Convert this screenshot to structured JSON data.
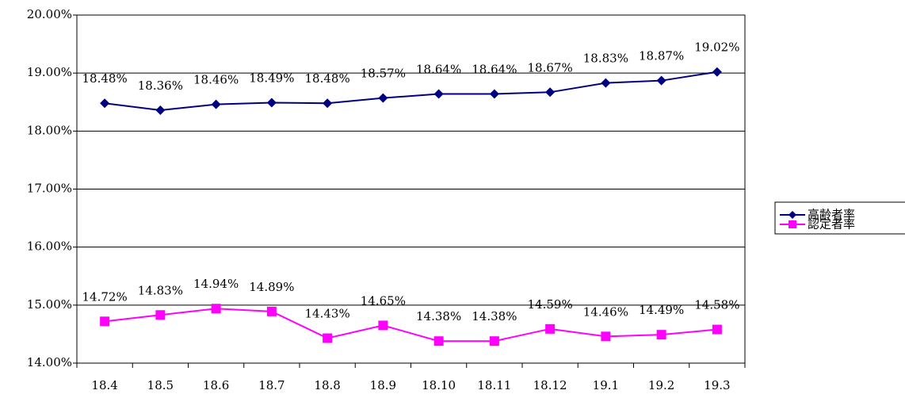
{
  "chart_data": {
    "type": "line",
    "categories": [
      "18.4",
      "18.5",
      "18.6",
      "18.7",
      "18.8",
      "18.9",
      "18.10",
      "18.11",
      "18.12",
      "19.1",
      "19.2",
      "19.3"
    ],
    "series": [
      {
        "name": "高齢者率",
        "color": "#000080",
        "marker": "diamond",
        "values": [
          18.48,
          18.36,
          18.46,
          18.49,
          18.48,
          18.57,
          18.64,
          18.64,
          18.67,
          18.83,
          18.87,
          19.02
        ],
        "value_labels": [
          "18.48%",
          "18.36%",
          "18.46%",
          "18.49%",
          "18.48%",
          "18.57%",
          "18.64%",
          "18.64%",
          "18.67%",
          "18.83%",
          "18.87%",
          "19.02%"
        ]
      },
      {
        "name": "認定者率",
        "color": "#ff00ff",
        "marker": "square",
        "values": [
          14.72,
          14.83,
          14.94,
          14.89,
          14.43,
          14.65,
          14.38,
          14.38,
          14.59,
          14.46,
          14.49,
          14.58
        ],
        "value_labels": [
          "14.72%",
          "14.83%",
          "14.94%",
          "14.89%",
          "14.43%",
          "14.65%",
          "14.38%",
          "14.38%",
          "14.59%",
          "14.46%",
          "14.49%",
          "14.58%"
        ]
      }
    ],
    "ylim": [
      14,
      20
    ],
    "yticks": [
      {
        "value": 14,
        "label": "14.00%"
      },
      {
        "value": 15,
        "label": "15.00%"
      },
      {
        "value": 16,
        "label": "16.00%"
      },
      {
        "value": 17,
        "label": "17.00%"
      },
      {
        "value": 18,
        "label": "18.00%"
      },
      {
        "value": 19,
        "label": "19.00%"
      },
      {
        "value": 20,
        "label": "20.00%"
      }
    ],
    "grid": true,
    "legend": "right"
  }
}
